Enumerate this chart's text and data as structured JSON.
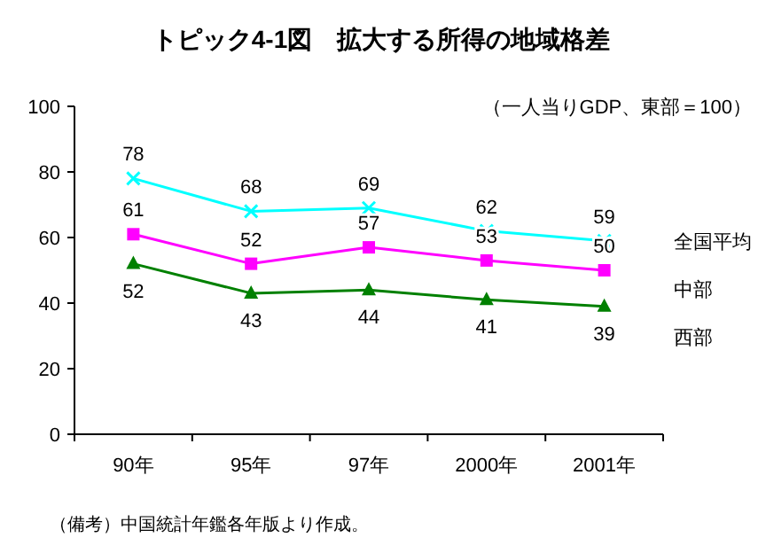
{
  "chart_data": {
    "type": "line",
    "title": "トピック4-1図　拡大する所得の地域格差",
    "subtitle": "（一人当りGDP、東部＝100）",
    "categories": [
      "90年",
      "95年",
      "97年",
      "2000年",
      "2001年"
    ],
    "series": [
      {
        "name": "全国平均",
        "color": "#00ffff",
        "marker": "cross",
        "values": [
          78,
          68,
          69,
          62,
          59
        ]
      },
      {
        "name": "中部",
        "color": "#ff00ff",
        "marker": "square",
        "values": [
          61,
          52,
          57,
          53,
          50
        ]
      },
      {
        "name": "西部",
        "color": "#008000",
        "marker": "triangle",
        "values": [
          52,
          43,
          44,
          41,
          39
        ]
      }
    ],
    "ylim": [
      0,
      100
    ],
    "yticks": [
      0,
      20,
      40,
      60,
      80,
      100
    ],
    "data_labels": true,
    "legend": "right",
    "grid": false,
    "annotations": [
      "（備考）中国統計年鑑各年版より作成。"
    ]
  }
}
